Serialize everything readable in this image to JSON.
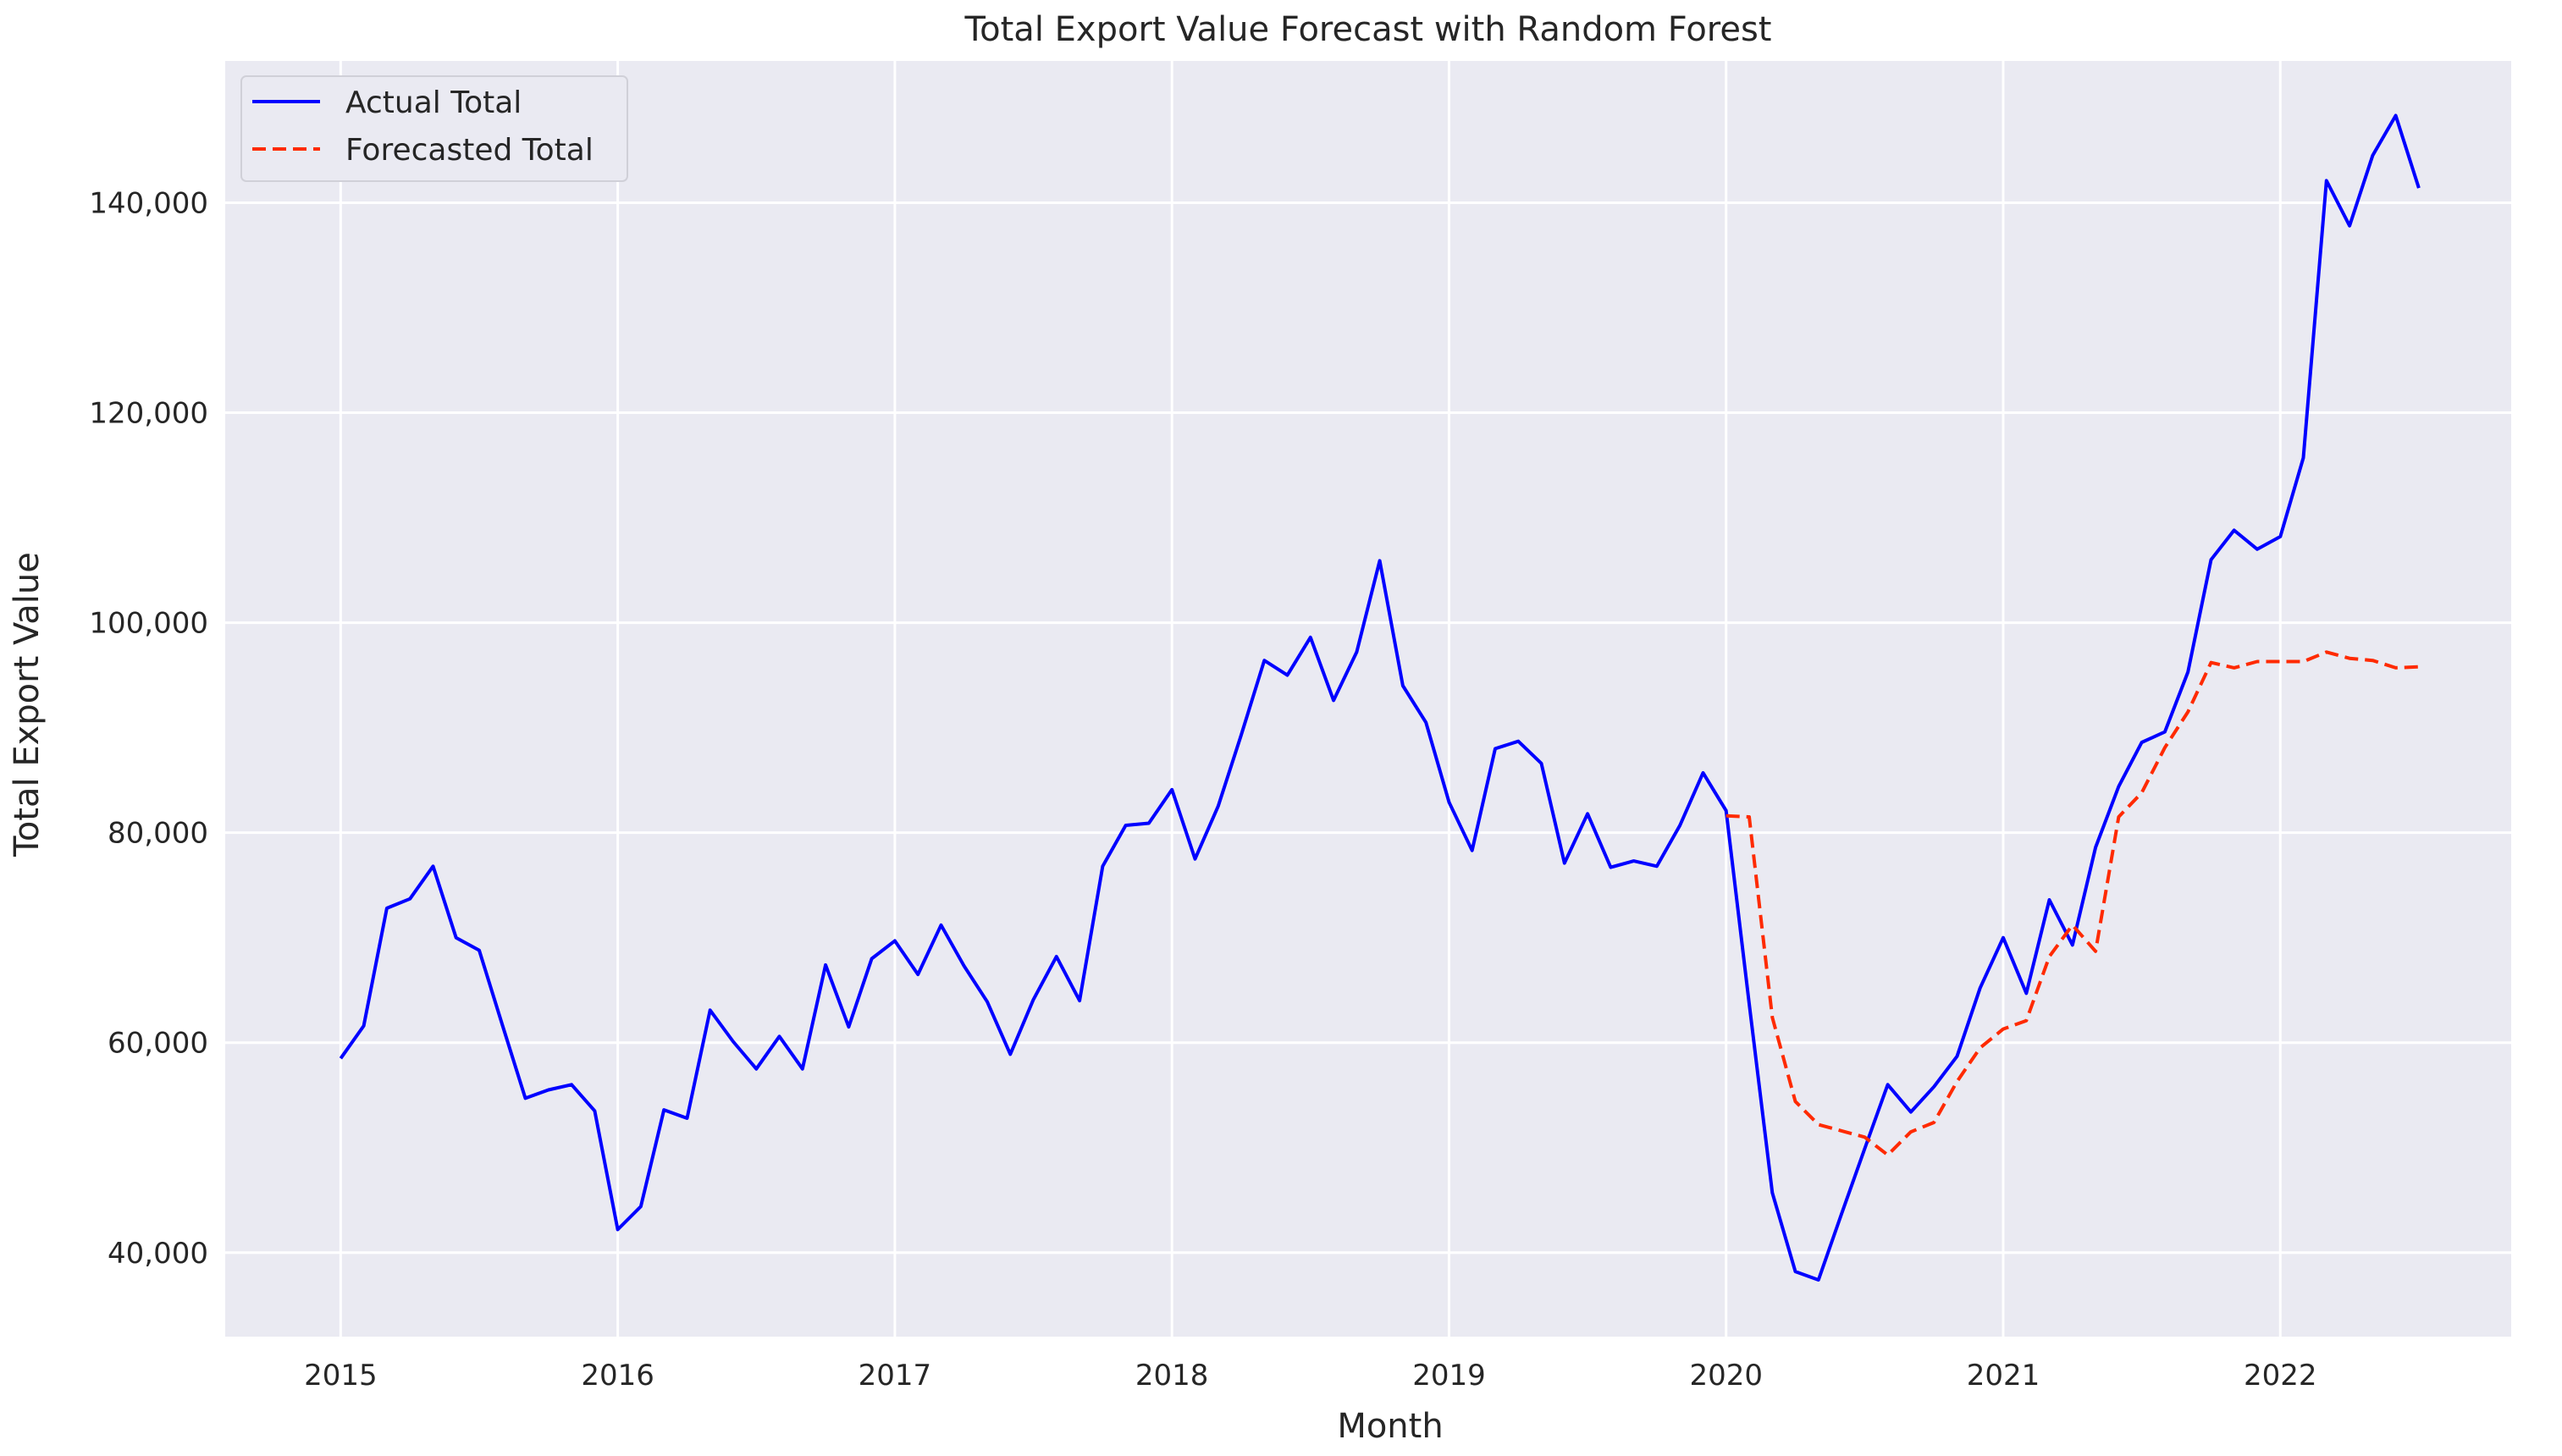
{
  "chart_data": {
    "type": "line",
    "title": "Total Export Value Forecast with Random Forest",
    "xlabel": "Month",
    "ylabel": "Total Export Value",
    "x_start": "2015-01",
    "x_tick_labels": [
      "2015",
      "2016",
      "2017",
      "2018",
      "2019",
      "2020",
      "2021",
      "2022"
    ],
    "y_ticks": [
      40000,
      60000,
      80000,
      100000,
      120000,
      140000
    ],
    "y_tick_labels": [
      "40,000",
      "60,000",
      "80,000",
      "100,000",
      "120,000",
      "140,000"
    ],
    "xlim": [
      "2014-08",
      "2022-11"
    ],
    "ylim": [
      32000,
      153500
    ],
    "grid": true,
    "legend_position": "top-left",
    "colors": {
      "background": "#eaeaf2",
      "grid": "#ffffff",
      "actual": "#0000ff",
      "forecast": "#ff2a00"
    },
    "series": [
      {
        "name": "Actual Total",
        "style": "solid",
        "start": "2015-01",
        "values": [
          58500,
          61600,
          72800,
          73700,
          76800,
          70000,
          68800,
          61700,
          54700,
          55500,
          56000,
          53500,
          42200,
          44400,
          53600,
          52800,
          63100,
          60100,
          57500,
          60600,
          57500,
          67400,
          61500,
          68000,
          69700,
          66500,
          71200,
          67300,
          63900,
          58900,
          64100,
          68200,
          64000,
          76800,
          80700,
          80900,
          84100,
          77500,
          82500,
          89300,
          96400,
          95000,
          98600,
          92600,
          97200,
          105900,
          94000,
          90500,
          82900,
          78300,
          88000,
          88700,
          86600,
          77100,
          81800,
          76700,
          77300,
          76800,
          80700,
          85700,
          82100,
          63700,
          45700,
          38200,
          37400,
          43700,
          49900,
          56000,
          53400,
          55800,
          58700,
          65200,
          70000,
          64700,
          73600,
          69300,
          78600,
          84400,
          88600,
          89600,
          95300,
          106000,
          108800,
          107000,
          108200,
          115700,
          142100,
          137800,
          144500,
          148300,
          141400
        ]
      },
      {
        "name": "Forecasted Total",
        "style": "dashed",
        "start": "2020-01",
        "values": [
          81600,
          81500,
          62400,
          54400,
          52200,
          51600,
          51000,
          49300,
          51500,
          52400,
          56300,
          59500,
          61300,
          62100,
          68200,
          71200,
          68700,
          81500,
          83800,
          88100,
          91500,
          96200,
          95700,
          96300,
          96300,
          96300,
          97200,
          96600,
          96400,
          95700,
          95800
        ]
      }
    ]
  }
}
